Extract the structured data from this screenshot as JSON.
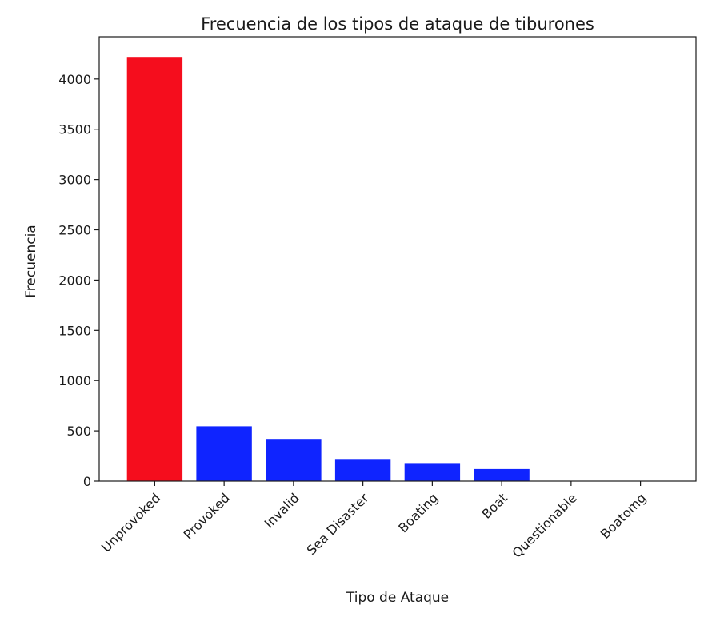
{
  "chart_data": {
    "type": "bar",
    "title": "Frecuencia de los tipos de ataque de tiburones",
    "xlabel": "Tipo de Ataque",
    "ylabel": "Frecuencia",
    "categories": [
      "Unprovoked",
      "Provoked",
      "Invalid",
      "Sea Disaster",
      "Boating",
      "Boat",
      "Questionable",
      "Boatomg"
    ],
    "values": [
      4220,
      545,
      420,
      220,
      180,
      120,
      2,
      1
    ],
    "colors": [
      "#f50d1d",
      "#0f24ff",
      "#0f24ff",
      "#0f24ff",
      "#0f24ff",
      "#0f24ff",
      "#0f24ff",
      "#0f24ff"
    ],
    "ylim": [
      0,
      4420
    ],
    "yticks": [
      0,
      500,
      1000,
      1500,
      2000,
      2500,
      3000,
      3500,
      4000
    ],
    "grid": false,
    "legend": "none"
  }
}
